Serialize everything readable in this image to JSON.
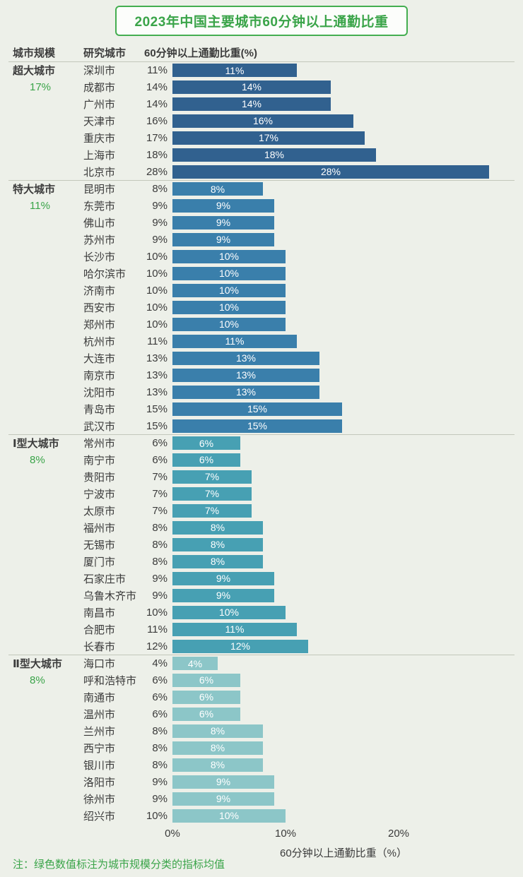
{
  "title": "2023年中国主要城市60分钟以上通勤比重",
  "headers": {
    "scale": "城市规模",
    "city": "研究城市",
    "metric": "60分钟以上通勤比重(%)"
  },
  "axis": {
    "label": "60分钟以上通勤比重（%）",
    "ticks": [
      {
        "label": "0%",
        "value": 0
      },
      {
        "label": "10%",
        "value": 10
      },
      {
        "label": "20%",
        "value": 20
      }
    ],
    "xlim": [
      0,
      30
    ]
  },
  "note": "注：绿色数值标注为城市规模分类的指标均值",
  "colors": {
    "background": "#edf0e9",
    "title_green": "#3aa449",
    "average_green": "#3aa449",
    "divider": "#c3c7bb",
    "bar_label": "#ffffff",
    "group_bar_colors": [
      "#31618f",
      "#3a7fab",
      "#47a0b3",
      "#8cc6c8"
    ]
  },
  "chart_data": {
    "type": "bar",
    "orientation": "horizontal",
    "title": "2023年中国主要城市60分钟以上通勤比重",
    "xlabel": "60分钟以上通勤比重（%）",
    "xlim": [
      0,
      30
    ],
    "x_ticks": [
      0,
      10,
      20
    ],
    "unit": "%",
    "grid": false,
    "legend": false,
    "groups": [
      {
        "scale": "超大城市",
        "average_label": "17%",
        "average": 17,
        "bar_color": "#31618f",
        "cities": [
          {
            "name": "深圳市",
            "value": 11
          },
          {
            "name": "成都市",
            "value": 14
          },
          {
            "name": "广州市",
            "value": 14
          },
          {
            "name": "天津市",
            "value": 16
          },
          {
            "name": "重庆市",
            "value": 17
          },
          {
            "name": "上海市",
            "value": 18
          },
          {
            "name": "北京市",
            "value": 28
          }
        ]
      },
      {
        "scale": "特大城市",
        "average_label": "11%",
        "average": 11,
        "bar_color": "#3a7fab",
        "cities": [
          {
            "name": "昆明市",
            "value": 8
          },
          {
            "name": "东莞市",
            "value": 9
          },
          {
            "name": "佛山市",
            "value": 9
          },
          {
            "name": "苏州市",
            "value": 9
          },
          {
            "name": "长沙市",
            "value": 10
          },
          {
            "name": "哈尔滨市",
            "value": 10
          },
          {
            "name": "济南市",
            "value": 10
          },
          {
            "name": "西安市",
            "value": 10
          },
          {
            "name": "郑州市",
            "value": 10
          },
          {
            "name": "杭州市",
            "value": 11
          },
          {
            "name": "大连市",
            "value": 13
          },
          {
            "name": "南京市",
            "value": 13
          },
          {
            "name": "沈阳市",
            "value": 13
          },
          {
            "name": "青岛市",
            "value": 15
          },
          {
            "name": "武汉市",
            "value": 15
          }
        ]
      },
      {
        "scale": "Ⅰ型大城市",
        "average_label": "8%",
        "average": 8,
        "bar_color": "#47a0b3",
        "cities": [
          {
            "name": "常州市",
            "value": 6
          },
          {
            "name": "南宁市",
            "value": 6
          },
          {
            "name": "贵阳市",
            "value": 7
          },
          {
            "name": "宁波市",
            "value": 7
          },
          {
            "name": "太原市",
            "value": 7
          },
          {
            "name": "福州市",
            "value": 8
          },
          {
            "name": "无锡市",
            "value": 8
          },
          {
            "name": "厦门市",
            "value": 8
          },
          {
            "name": "石家庄市",
            "value": 9
          },
          {
            "name": "乌鲁木齐市",
            "value": 9
          },
          {
            "name": "南昌市",
            "value": 10
          },
          {
            "name": "合肥市",
            "value": 11
          },
          {
            "name": "长春市",
            "value": 12
          }
        ]
      },
      {
        "scale": "Ⅱ型大城市",
        "average_label": "8%",
        "average": 8,
        "bar_color": "#8cc6c8",
        "cities": [
          {
            "name": "海口市",
            "value": 4
          },
          {
            "name": "呼和浩特市",
            "value": 6
          },
          {
            "name": "南通市",
            "value": 6
          },
          {
            "name": "温州市",
            "value": 6
          },
          {
            "name": "兰州市",
            "value": 8
          },
          {
            "name": "西宁市",
            "value": 8
          },
          {
            "name": "银川市",
            "value": 8
          },
          {
            "name": "洛阳市",
            "value": 9
          },
          {
            "name": "徐州市",
            "value": 9
          },
          {
            "name": "绍兴市",
            "value": 10
          }
        ]
      }
    ]
  }
}
